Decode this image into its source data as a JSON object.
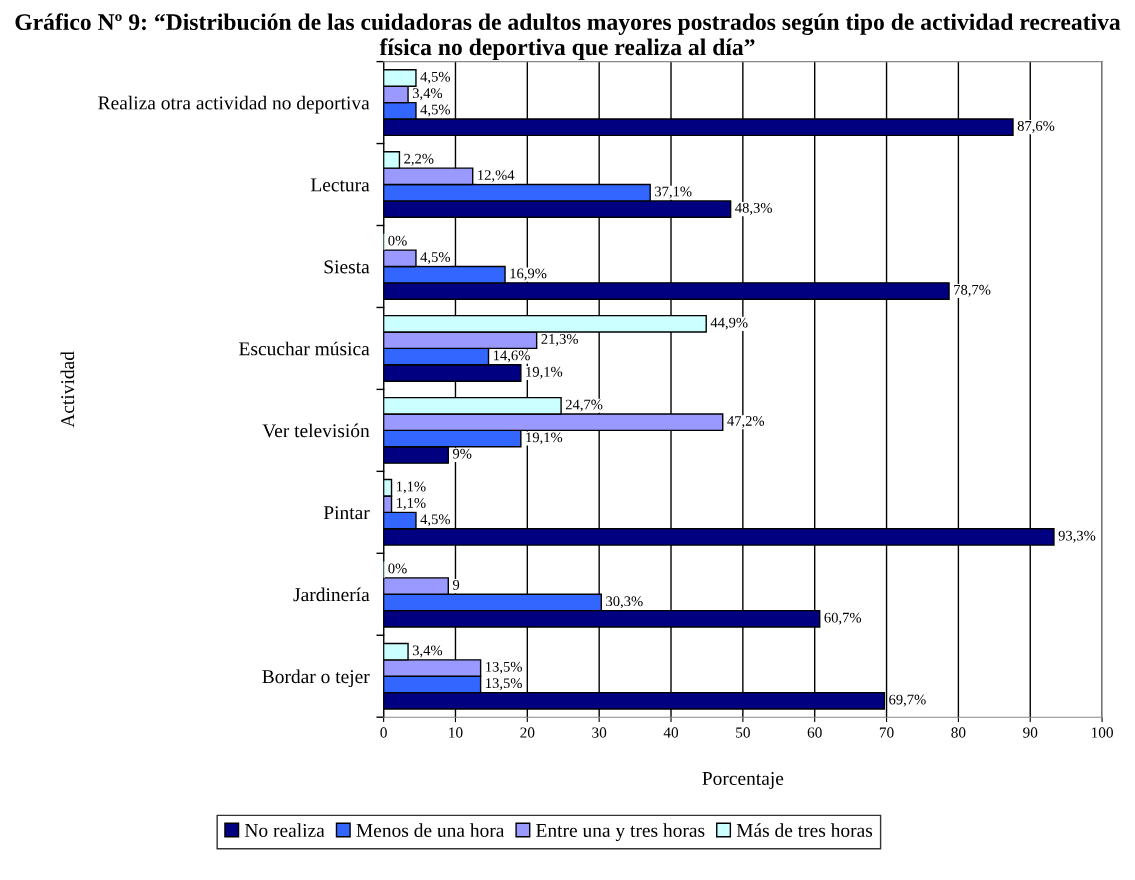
{
  "chart_data": {
    "type": "bar",
    "orientation": "horizontal",
    "title": "Gráfico Nº 9: “Distribución de las cuidadoras de adultos mayores postrados según tipo de actividad recreativa física no deportiva que realiza al día”",
    "xlabel": "Porcentaje",
    "ylabel": "Actividad",
    "categories": [
      "Realiza otra actividad no deportiva",
      "Lectura",
      "Siesta",
      "Escuchar música",
      "Ver televisión",
      "Pintar",
      "Jardinería",
      "Bordar o tejer"
    ],
    "series": [
      {
        "name": "No realiza",
        "color": "#000080",
        "values": [
          87.6,
          48.3,
          78.7,
          19.1,
          9,
          93.3,
          60.7,
          69.7
        ],
        "value_labels": [
          "87,6%",
          "48,3%",
          "78,7%",
          "19,1%",
          "9%",
          "93,3%",
          "60,7%",
          "69,7%"
        ]
      },
      {
        "name": "Menos de una hora",
        "color": "#3366ff",
        "values": [
          4.5,
          37.1,
          16.9,
          14.6,
          19.1,
          4.5,
          30.3,
          13.5
        ],
        "value_labels": [
          "4,5%",
          "37,1%",
          "16,9%",
          "14,6%",
          "19,1%",
          "4,5%",
          "30,3%",
          "13,5%"
        ]
      },
      {
        "name": "Entre una y tres horas",
        "color": "#9999ff",
        "values": [
          3.4,
          12.4,
          4.5,
          21.3,
          47.2,
          1.1,
          9,
          13.5
        ],
        "value_labels": [
          "3,4%",
          "12,%4",
          "4,5%",
          "21,3%",
          "47,2%",
          "1,1%",
          "9",
          "13,5%"
        ]
      },
      {
        "name": "Más de tres horas",
        "color": "#ccffff",
        "values": [
          4.5,
          2.2,
          0,
          44.9,
          24.7,
          1.1,
          0,
          3.4
        ],
        "value_labels": [
          "4,5%",
          "2,2%",
          "0%",
          "44,9%",
          "24,7%",
          "1,1%",
          "0%",
          "3,4%"
        ]
      }
    ],
    "xlim": [
      0,
      100
    ],
    "xticks": [
      0,
      10,
      20,
      30,
      40,
      50,
      60,
      70,
      80,
      90,
      100
    ],
    "grid": "x",
    "legend": "bottom"
  }
}
